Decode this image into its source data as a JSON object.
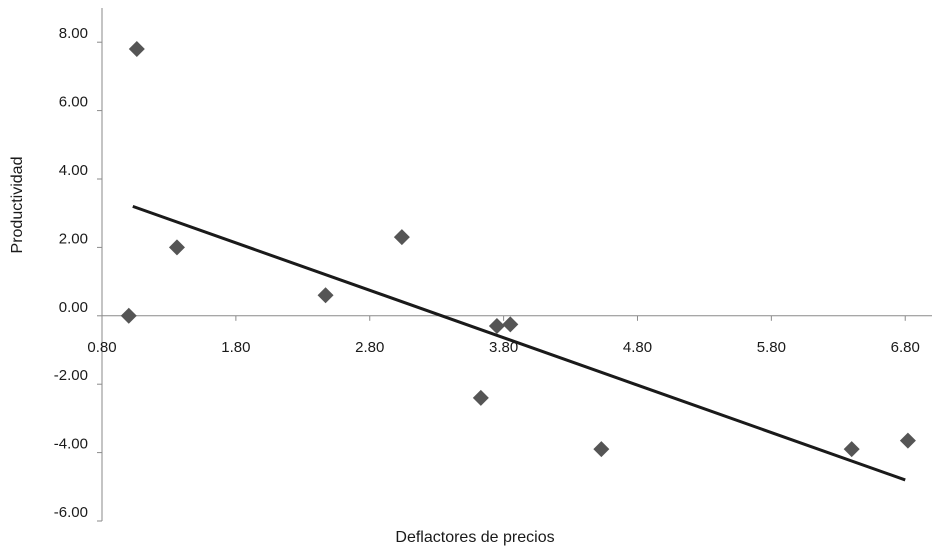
{
  "chart_data": {
    "type": "scatter",
    "title": "",
    "xlabel": "Deflactores de precios",
    "ylabel": "Productividad",
    "xlim": [
      0.8,
      7.0
    ],
    "ylim": [
      -6.0,
      9.0
    ],
    "x_ticks": [
      "0.80",
      "1.80",
      "2.80",
      "3.80",
      "4.80",
      "5.80",
      "6.80"
    ],
    "x_tick_values": [
      0.8,
      1.8,
      2.8,
      3.8,
      4.8,
      5.8,
      6.8
    ],
    "y_ticks": [
      "8.00",
      "6.00",
      "4.00",
      "2.00",
      "0.00",
      "-2.00",
      "-4.00",
      "-6.00"
    ],
    "y_tick_values": [
      8,
      6,
      4,
      2,
      0,
      -2,
      -4,
      -6
    ],
    "grid": false,
    "legend": "none",
    "marker": "diamond",
    "marker_color": "#555555",
    "line_color": "#1a1a1a",
    "points": [
      {
        "x": 1.0,
        "y": 0.0
      },
      {
        "x": 1.06,
        "y": 7.8
      },
      {
        "x": 1.36,
        "y": 2.0
      },
      {
        "x": 2.47,
        "y": 0.6
      },
      {
        "x": 3.04,
        "y": 2.3
      },
      {
        "x": 3.63,
        "y": -2.4
      },
      {
        "x": 3.75,
        "y": -0.3
      },
      {
        "x": 3.85,
        "y": -0.25
      },
      {
        "x": 4.53,
        "y": -3.9
      },
      {
        "x": 6.4,
        "y": -3.9
      },
      {
        "x": 6.82,
        "y": -3.65
      }
    ],
    "trendline": {
      "x": [
        1.03,
        6.8
      ],
      "y": [
        3.2,
        -4.8
      ]
    }
  }
}
